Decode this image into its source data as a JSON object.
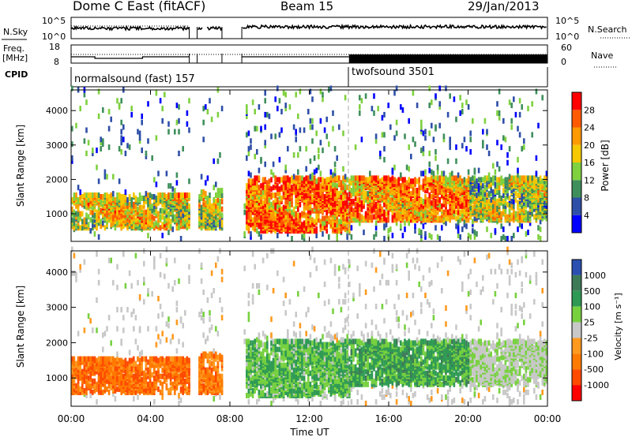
{
  "header": {
    "title": "Dome C East (fitACF)",
    "beam": "Beam 15",
    "date": "29/Jan/2013"
  },
  "panels": {
    "nsky": {
      "left_label": "N.Sky",
      "ticks_left": [
        "10^5",
        "10^0"
      ],
      "ticks_right": [
        "10^5",
        "10^0"
      ],
      "right_label": "N.Search"
    },
    "freq": {
      "left_label_1": "Freq.",
      "left_label_2": "[MHz]",
      "ticks_left": [
        "18",
        "8"
      ],
      "ticks_right": [
        "60",
        "0"
      ],
      "right_label": "Nave"
    },
    "cpid": {
      "label": "CPID",
      "segments": [
        {
          "name": "normalsound (fast) 157",
          "start_h": 0
        },
        {
          "name": "twofsound 3501",
          "start_h": 14
        }
      ]
    }
  },
  "chart_data": [
    {
      "type": "heatmap",
      "quantity": "Power",
      "ylabel": "Slant Range [km]",
      "xlabel": "",
      "xlim_hours": [
        0,
        24
      ],
      "ylim": [
        200,
        4600
      ],
      "y_ticks": [
        "1000",
        "2000",
        "3000",
        "4000"
      ],
      "colorbar_label": "Power [dB]",
      "colorbar_ticks": [
        "28",
        "24",
        "20",
        "16",
        "12",
        "8",
        "4"
      ],
      "colors": [
        "#0000ff",
        "#2e4fa8",
        "#3f8f5c",
        "#7fd13f",
        "#f5c800",
        "#ff9a00",
        "#ff5a00",
        "#ff0000"
      ],
      "data_gaps_hours": [
        [
          5.95,
          6.35
        ],
        [
          7.6,
          8.6
        ]
      ],
      "echo_bands": [
        {
          "t0": 0.0,
          "t1": 6.0,
          "r0": 500,
          "r1": 1500,
          "level": 0.55
        },
        {
          "t0": 6.3,
          "t1": 7.6,
          "r0": 500,
          "r1": 1600,
          "level": 0.5
        },
        {
          "t0": 8.7,
          "t1": 14.0,
          "r0": 400,
          "r1": 2000,
          "level": 0.8
        },
        {
          "t0": 14.0,
          "t1": 20.0,
          "r0": 700,
          "r1": 2000,
          "level": 0.75
        },
        {
          "t0": 20.0,
          "t1": 24.0,
          "r0": 700,
          "r1": 2000,
          "level": 0.45
        }
      ]
    },
    {
      "type": "heatmap",
      "quantity": "Velocity",
      "ylabel": "Slant Range [km]",
      "xlabel": "Time UT",
      "x_ticks": [
        "00:00",
        "04:00",
        "08:00",
        "12:00",
        "16:00",
        "20:00",
        "00:00"
      ],
      "xlim_hours": [
        0,
        24
      ],
      "ylim": [
        200,
        4600
      ],
      "y_ticks": [
        "1000",
        "2000",
        "3000",
        "4000"
      ],
      "colorbar_label": "Velocity [m s⁻¹]",
      "colorbar_ticks": [
        "1000",
        "500",
        "100",
        "25",
        "-25",
        "-100",
        "-500",
        "-1000"
      ],
      "colors": [
        "#2a4fb0",
        "#3d7a58",
        "#2f9a54",
        "#77d13f",
        "#c8c8c8",
        "#ff9a1f",
        "#ff7a00",
        "#ff4a00",
        "#ff0000"
      ],
      "data_gaps_hours": [
        [
          5.95,
          6.35
        ],
        [
          7.6,
          8.6
        ]
      ],
      "echo_bands": [
        {
          "t0": 0.0,
          "t1": 6.0,
          "r0": 500,
          "r1": 1500,
          "level": -0.55
        },
        {
          "t0": 6.3,
          "t1": 7.6,
          "r0": 500,
          "r1": 1600,
          "level": -0.5
        },
        {
          "t0": 8.7,
          "t1": 14.0,
          "r0": 400,
          "r1": 2000,
          "level": 0.35
        },
        {
          "t0": 14.0,
          "t1": 20.0,
          "r0": 700,
          "r1": 2000,
          "level": 0.45
        },
        {
          "t0": 20.0,
          "t1": 24.0,
          "r0": 700,
          "r1": 2000,
          "level": 0.1
        }
      ]
    }
  ]
}
